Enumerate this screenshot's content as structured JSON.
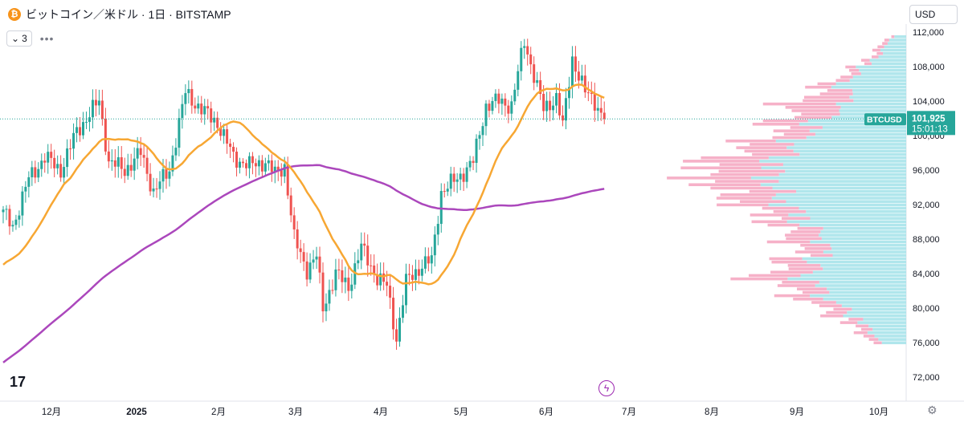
{
  "header": {
    "coin_icon": "bitcoin-icon",
    "symbol_title": "ビットコイン／米ドル · 1日 · BITSTAMP"
  },
  "controls": {
    "indicator_count": "3",
    "more_icon": "ellipsis-icon",
    "currency": "USD"
  },
  "price_label": {
    "ticker": "BTCUSD",
    "price": "101,925",
    "countdown": "15:01:13"
  },
  "colors": {
    "up": "#26a69a",
    "down": "#ef5350",
    "ma_short": "#f7a733",
    "ma_long": "#ab47bc",
    "vp_up": "#a7e3ea",
    "vp_down": "#f5a9c2",
    "price_tag": "#26a69a"
  },
  "chart_data": {
    "type": "candlestick",
    "y_ticks": [
      "112,000",
      "108,000",
      "104,000",
      "100,000",
      "96,000",
      "92,000",
      "88,000",
      "84,000",
      "80,000",
      "76,000",
      "72,000"
    ],
    "x_ticks": [
      "12月",
      "2025",
      "2月",
      "3月",
      "4月",
      "5月",
      "6月",
      "7月",
      "8月",
      "9月",
      "10月"
    ],
    "ylim": [
      70000,
      113000
    ],
    "last_price": 101925,
    "anchors": [
      {
        "d": 0,
        "p": 91000
      },
      {
        "d": 3,
        "p": 89500
      },
      {
        "d": 8,
        "p": 95000
      },
      {
        "d": 13,
        "p": 97500
      },
      {
        "d": 18,
        "p": 96000
      },
      {
        "d": 23,
        "p": 100500
      },
      {
        "d": 30,
        "p": 104000
      },
      {
        "d": 33,
        "p": 97000
      },
      {
        "d": 38,
        "p": 96000
      },
      {
        "d": 43,
        "p": 98000
      },
      {
        "d": 47,
        "p": 93500
      },
      {
        "d": 52,
        "p": 96000
      },
      {
        "d": 57,
        "p": 105000
      },
      {
        "d": 62,
        "p": 103000
      },
      {
        "d": 67,
        "p": 101500
      },
      {
        "d": 72,
        "p": 97500
      },
      {
        "d": 77,
        "p": 96500
      },
      {
        "d": 82,
        "p": 97000
      },
      {
        "d": 85,
        "p": 95500
      },
      {
        "d": 88,
        "p": 96500
      },
      {
        "d": 91,
        "p": 88000
      },
      {
        "d": 95,
        "p": 84500
      },
      {
        "d": 98,
        "p": 86000
      },
      {
        "d": 100,
        "p": 80000
      },
      {
        "d": 104,
        "p": 84000
      },
      {
        "d": 108,
        "p": 82500
      },
      {
        "d": 112,
        "p": 87000
      },
      {
        "d": 117,
        "p": 83500
      },
      {
        "d": 120,
        "p": 82500
      },
      {
        "d": 123,
        "p": 76500
      },
      {
        "d": 126,
        "p": 83000
      },
      {
        "d": 131,
        "p": 85000
      },
      {
        "d": 134,
        "p": 85500
      },
      {
        "d": 137,
        "p": 93500
      },
      {
        "d": 142,
        "p": 95000
      },
      {
        "d": 147,
        "p": 97000
      },
      {
        "d": 151,
        "p": 103500
      },
      {
        "d": 155,
        "p": 104000
      },
      {
        "d": 159,
        "p": 103500
      },
      {
        "d": 163,
        "p": 111000
      },
      {
        "d": 166,
        "p": 107000
      },
      {
        "d": 169,
        "p": 103000
      },
      {
        "d": 173,
        "p": 104500
      },
      {
        "d": 175,
        "p": 101000
      },
      {
        "d": 178,
        "p": 109000
      },
      {
        "d": 182,
        "p": 105000
      },
      {
        "d": 185,
        "p": 104000
      },
      {
        "d": 188,
        "p": 101925
      }
    ],
    "volume_profile_up": [
      [
        112000,
        0.08
      ],
      [
        110000,
        0.16
      ],
      [
        108000,
        0.3
      ],
      [
        106000,
        0.45
      ],
      [
        104000,
        0.38
      ],
      [
        102000,
        0.6
      ],
      [
        100000,
        0.72
      ],
      [
        98000,
        0.85
      ],
      [
        96000,
        0.95
      ],
      [
        94000,
        0.9
      ],
      [
        92000,
        0.82
      ],
      [
        90000,
        0.7
      ],
      [
        88000,
        0.55
      ],
      [
        86000,
        0.6
      ],
      [
        84000,
        0.7
      ],
      [
        82000,
        0.6
      ],
      [
        80000,
        0.42
      ],
      [
        78000,
        0.28
      ],
      [
        76000,
        0.15
      ]
    ],
    "volume_profile_down": [
      [
        112000,
        0.02
      ],
      [
        110000,
        0.05
      ],
      [
        108000,
        0.06
      ],
      [
        106000,
        0.12
      ],
      [
        104000,
        0.42
      ],
      [
        102000,
        0.28
      ],
      [
        100000,
        0.25
      ],
      [
        98000,
        0.4
      ],
      [
        96000,
        0.55
      ],
      [
        94000,
        0.42
      ],
      [
        92000,
        0.3
      ],
      [
        90000,
        0.2
      ],
      [
        88000,
        0.25
      ],
      [
        86000,
        0.18
      ],
      [
        84000,
        0.35
      ],
      [
        82000,
        0.22
      ],
      [
        80000,
        0.15
      ],
      [
        78000,
        0.1
      ],
      [
        76000,
        0.05
      ]
    ]
  }
}
